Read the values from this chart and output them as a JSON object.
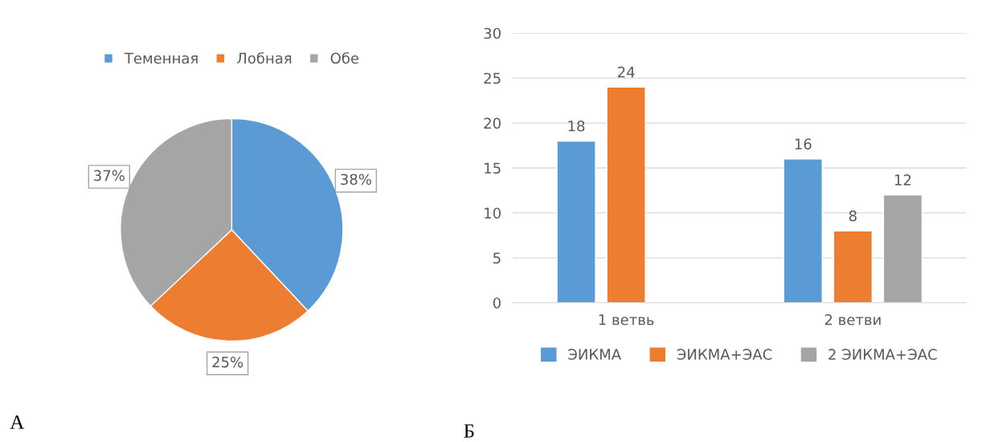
{
  "chart_data": [
    {
      "type": "pie",
      "categories": [
        "Теменная",
        "Лобная",
        "Обе"
      ],
      "values": [
        38,
        25,
        37
      ],
      "colors": [
        "#5b9bd5",
        "#ed7d31",
        "#a5a5a5"
      ],
      "value_labels": [
        "38%",
        "25%",
        "37%"
      ],
      "legend": "top",
      "annotations": [
        "А"
      ]
    },
    {
      "type": "bar",
      "categories": [
        "1 ветвь",
        "2 ветви"
      ],
      "series": [
        {
          "name": "ЭИКМА",
          "color": "#5b9bd5",
          "values": [
            18,
            16
          ]
        },
        {
          "name": "ЭИКМА+ЭАС",
          "color": "#ed7d31",
          "values": [
            24,
            8
          ]
        },
        {
          "name": "2 ЭИКМА+ЭАС",
          "color": "#a5a5a5",
          "values": [
            null,
            12
          ]
        }
      ],
      "ylim": [
        0,
        30
      ],
      "yticks": [
        0,
        5,
        10,
        15,
        20,
        25,
        30
      ],
      "grid": "y",
      "legend": "bottom",
      "data_labels": true,
      "annotations": [
        "Б"
      ]
    }
  ]
}
